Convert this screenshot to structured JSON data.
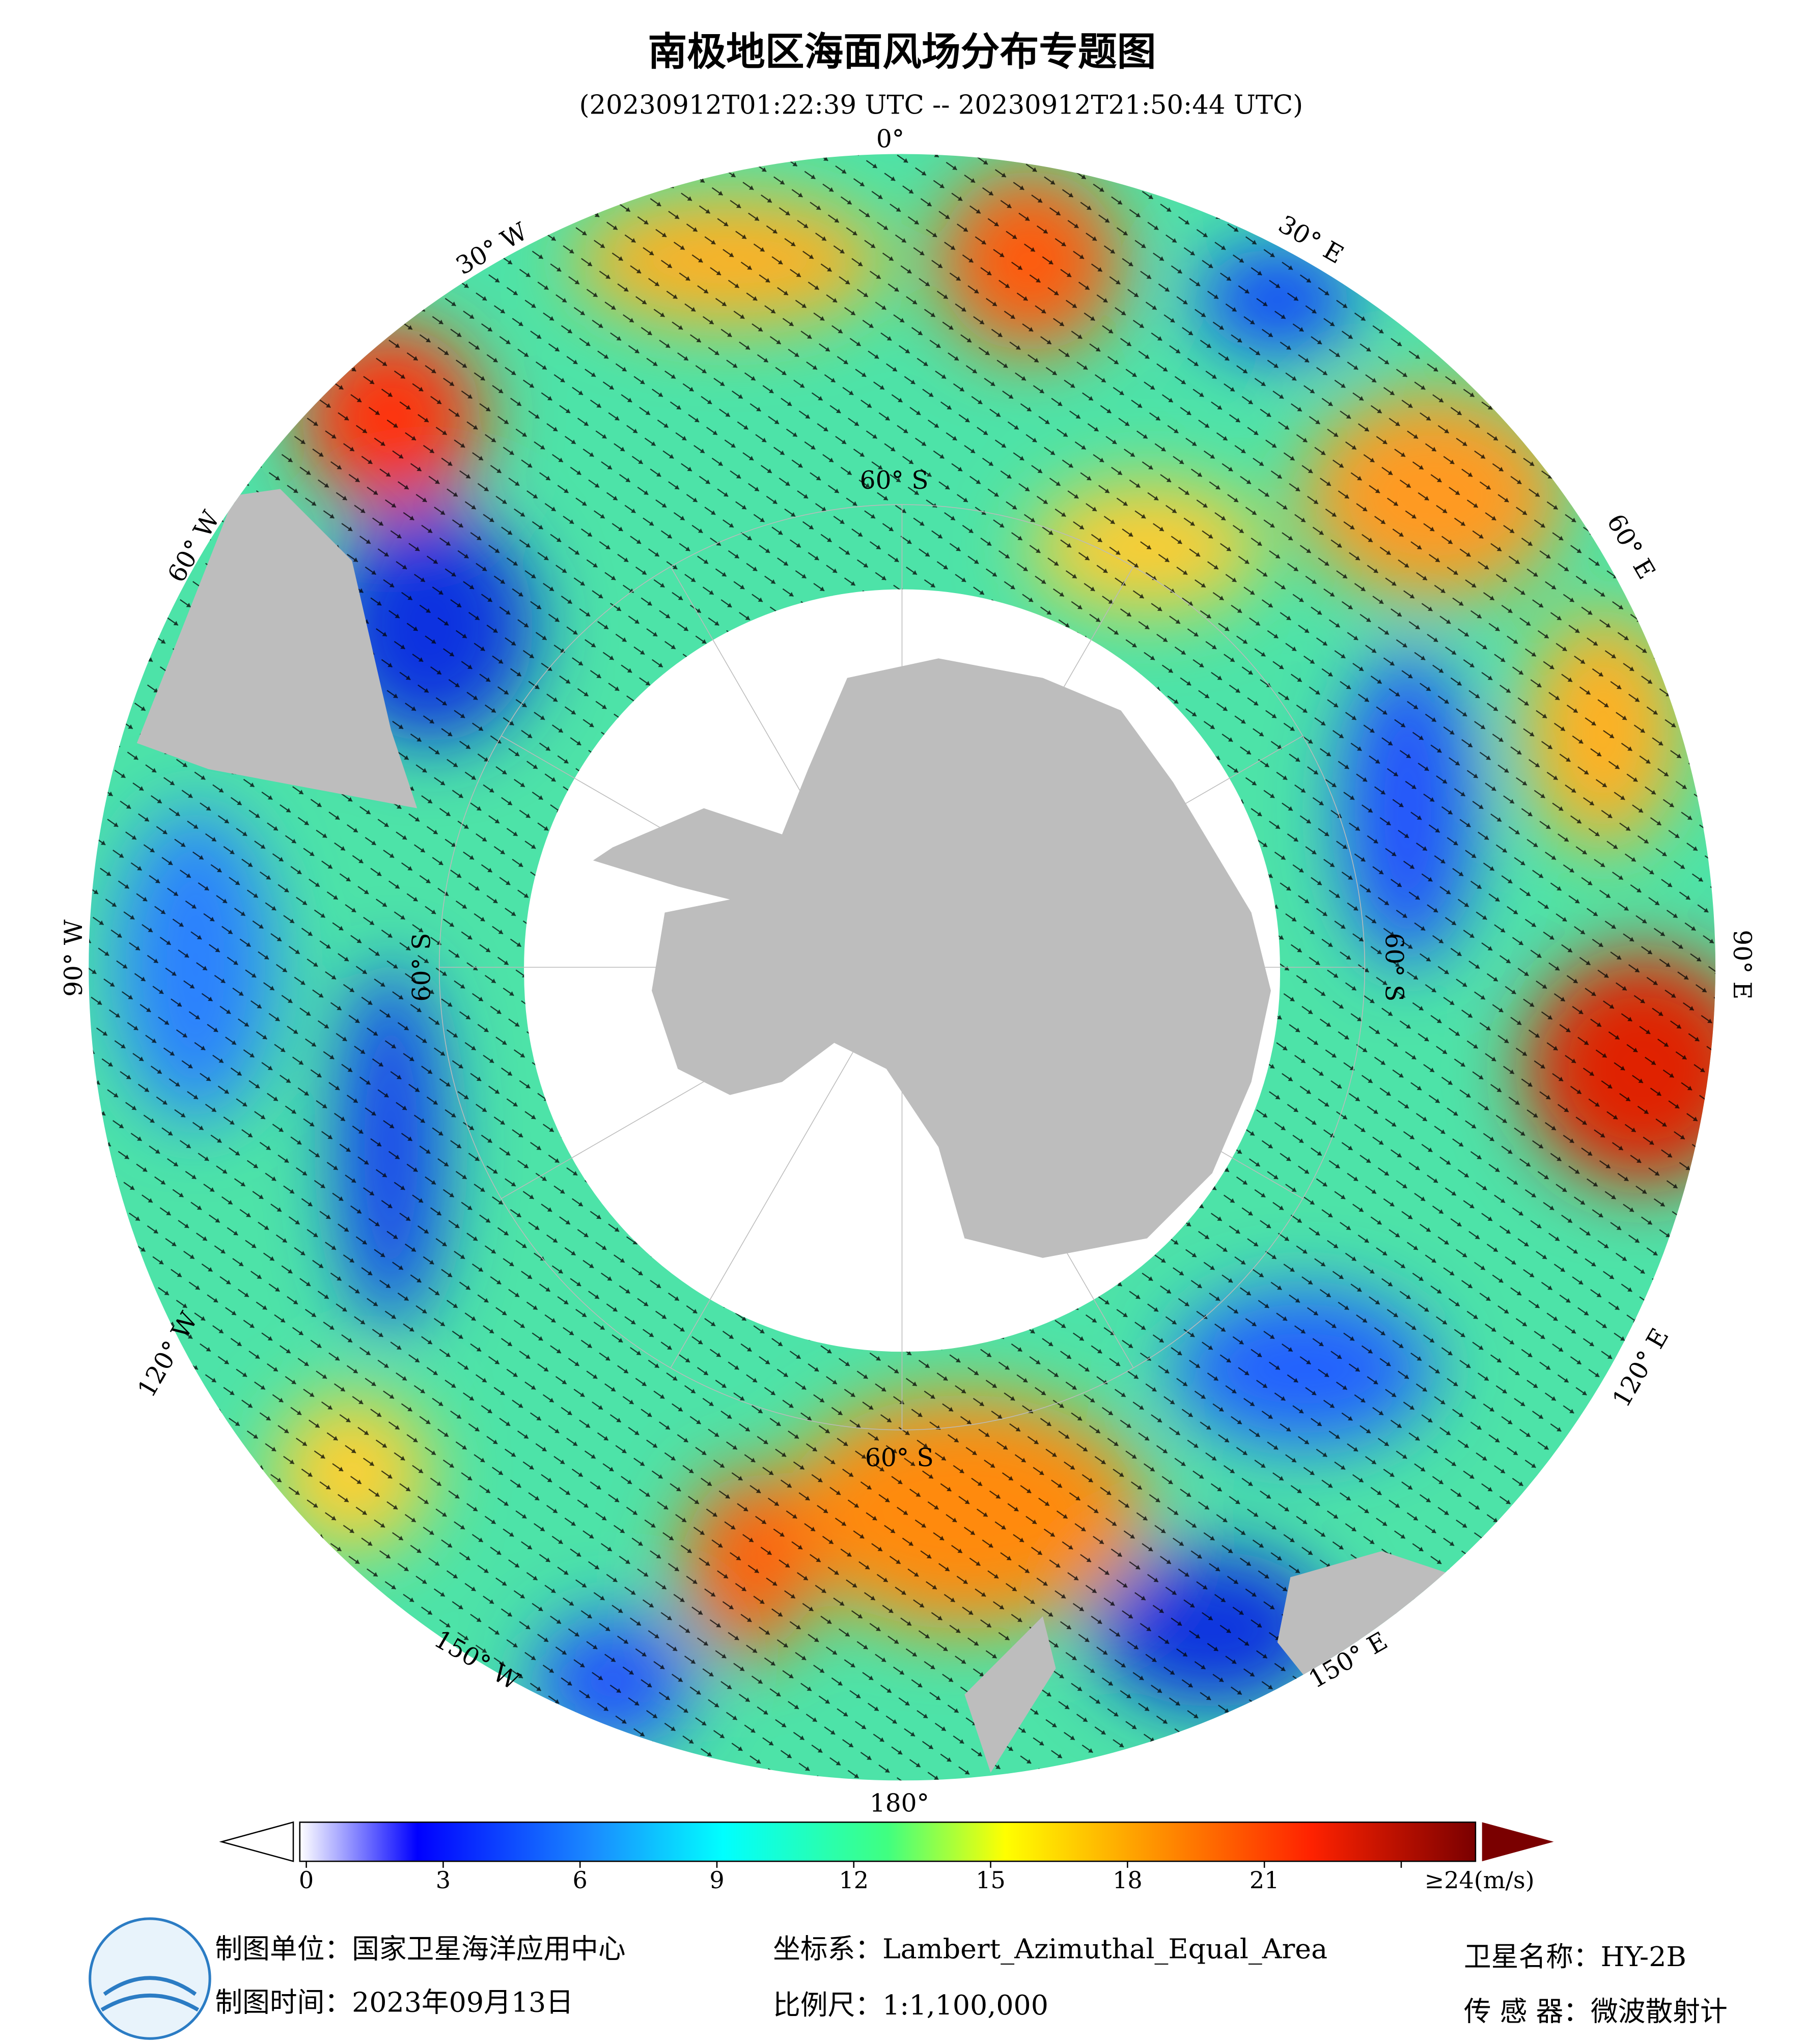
{
  "header": {
    "title": "南极地区海面风场分布专题图",
    "subtitle": "(20230912T01:22:39 UTC -- 20230912T21:50:44 UTC)"
  },
  "map": {
    "longitude_labels": [
      "0°",
      "30° E",
      "60° E",
      "90° E",
      "120° E",
      "150° E",
      "180°",
      "150° W",
      "120° W",
      "90° W",
      "60° W",
      "30° W"
    ],
    "latitude_labels": [
      "60° S",
      "60° S",
      "60° S",
      "60° S"
    ]
  },
  "colorbar": {
    "xlim": [
      0,
      24
    ],
    "ticks": [
      0,
      3,
      6,
      9,
      12,
      15,
      18,
      21,
      {
        "value": 24,
        "label": "≥24(m/s)"
      }
    ]
  },
  "footer": {
    "producer": "制图单位：国家卫星海洋应用中心",
    "date": "制图时间：2023年09月13日",
    "crs": "坐标系：Lambert_Azimuthal_Equal_Area",
    "scale": "比例尺：1:1,100,000",
    "satellite": "卫星名称：HY-2B",
    "sensor": "传 感 器：微波散射计"
  }
}
